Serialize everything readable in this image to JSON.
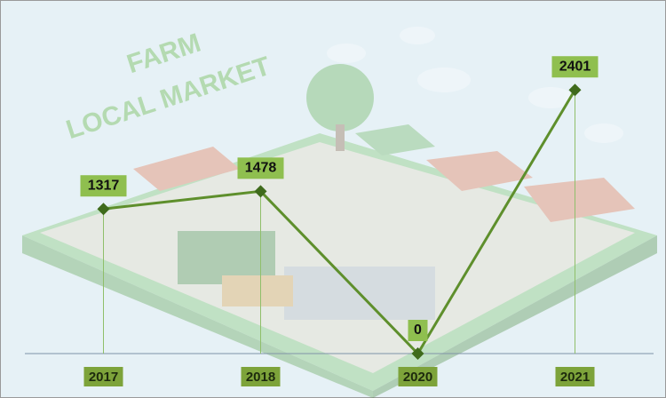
{
  "chart_data": {
    "type": "line",
    "annotations": [
      "FARM",
      "LOCAL MARKET"
    ],
    "categories": [
      "2017",
      "2018",
      "2020",
      "2021"
    ],
    "values": [
      1317,
      1478,
      0,
      2401
    ],
    "color": "#5e8f2c",
    "ylim": [
      0,
      2500
    ]
  }
}
